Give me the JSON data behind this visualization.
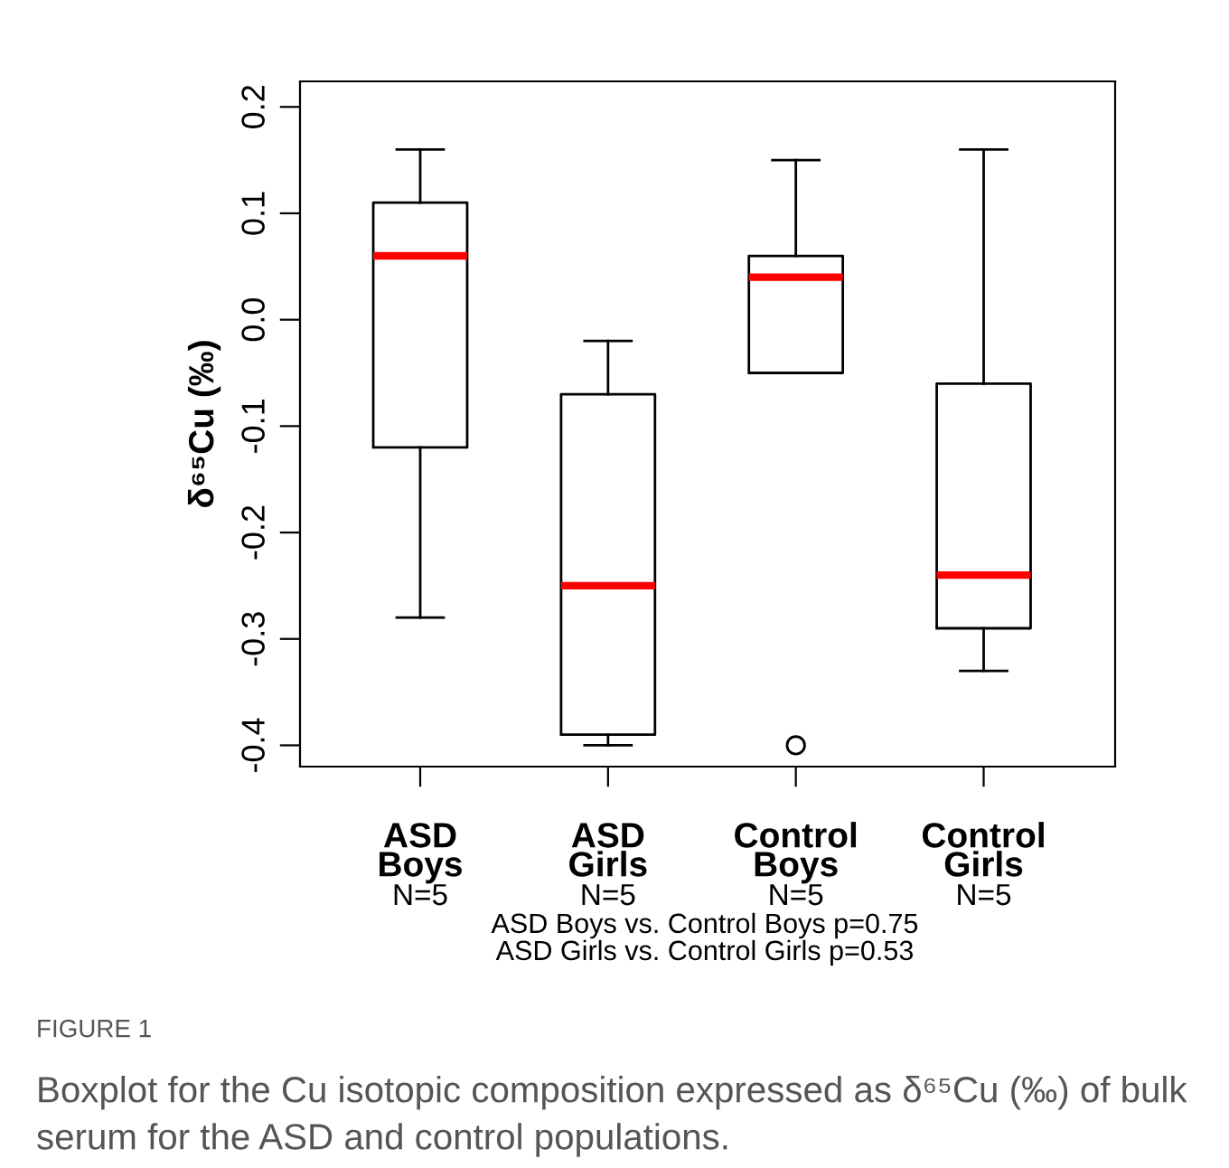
{
  "chart_data": {
    "type": "box",
    "ylabel": "δ⁶⁵Cu (‰)",
    "categories": [
      "ASD\nBoys",
      "ASD\nGirls",
      "Control\nBoys",
      "Control\nGirls"
    ],
    "series": [
      {
        "color": "#000000",
        "boxes": [
          {
            "low": -0.28,
            "q1": -0.12,
            "median": 0.06,
            "q3": 0.11,
            "high": 0.16
          },
          {
            "low": -0.4,
            "q1": -0.39,
            "median": -0.25,
            "q3": -0.07,
            "high": -0.02
          },
          {
            "low": -0.05,
            "q1": -0.05,
            "median": 0.04,
            "q3": 0.06,
            "high": 0.15,
            "outliers": [
              -0.4
            ]
          },
          {
            "low": -0.33,
            "q1": -0.29,
            "median": -0.24,
            "q3": -0.06,
            "high": 0.16
          }
        ]
      }
    ],
    "ylim": [
      -0.42,
      0.224
    ],
    "yticks": [
      {
        "value": -0.4,
        "label": "-0.4"
      },
      {
        "value": -0.3,
        "label": "-0.3"
      },
      {
        "value": -0.2,
        "label": "-0.2"
      },
      {
        "value": -0.1,
        "label": "-0.1"
      },
      {
        "value": 0.0,
        "label": "0.0"
      },
      {
        "value": 0.1,
        "label": "0.1"
      },
      {
        "value": 0.2,
        "label": "0.2"
      }
    ],
    "grid": false,
    "legend": false,
    "annotations": [
      "N=5",
      "N=5",
      "N=5",
      "N=5",
      "ASD Boys vs. Control Boys p=0.75",
      "ASD Girls vs. Control Girls p=0.53",
      "FIGURE 1",
      "Boxplot for the Cu isotopic composition expressed as δ⁶⁵Cu (‰) of bulk serum for the ASD and control populations."
    ]
  }
}
